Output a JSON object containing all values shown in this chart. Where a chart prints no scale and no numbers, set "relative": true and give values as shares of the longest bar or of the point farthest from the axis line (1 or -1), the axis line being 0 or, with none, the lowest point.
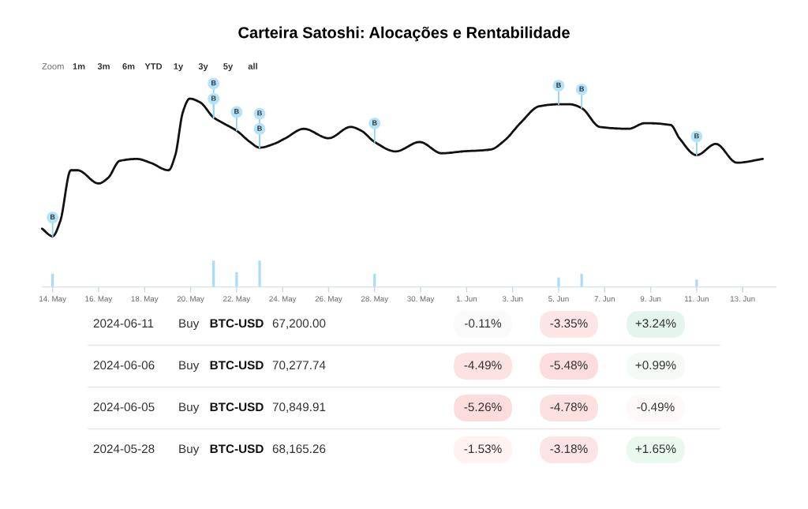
{
  "chart_data": [
    {
      "type": "line",
      "title": "Carteira Satoshi: Alocações e Rentabilidade",
      "relative": true,
      "x": [
        "2024-05-13T13:00",
        "2024-05-14T00:00",
        "2024-05-14T08:00",
        "2024-05-14T19:00",
        "2024-05-15T02:00",
        "2024-05-16T00:00",
        "2024-05-16T10:00",
        "2024-05-16T22:00",
        "2024-05-17T16:00",
        "2024-05-18T06:00",
        "2024-05-19T01:00",
        "2024-05-19T08:00",
        "2024-05-19T16:00",
        "2024-05-19T23:00",
        "2024-05-20T10:00",
        "2024-05-21T00:00",
        "2024-05-21T10:00",
        "2024-05-22T00:00",
        "2024-05-22T14:00",
        "2024-05-23T00:00",
        "2024-05-23T15:00",
        "2024-05-24T03:00",
        "2024-05-24T22:00",
        "2024-05-26T00:00",
        "2024-05-26T23:00",
        "2024-05-27T10:00",
        "2024-05-28T00:00",
        "2024-05-28T22:00",
        "2024-05-29T23:00",
        "2024-05-30T22:00",
        "2024-05-31T20:00",
        "2024-06-02T01:00",
        "2024-06-02T16:00",
        "2024-06-03T08:00",
        "2024-06-04T04:00",
        "2024-06-05T00:00",
        "2024-06-05T12:00",
        "2024-06-06T00:00",
        "2024-06-06T19:00",
        "2024-06-08T01:00",
        "2024-06-08T18:00",
        "2024-06-09T21:00",
        "2024-06-10T06:00",
        "2024-06-11T00:00",
        "2024-06-11T20:00",
        "2024-06-12T18:00",
        "2024-06-13T21:00"
      ],
      "series": [
        {
          "type": "line",
          "color": "#111111",
          "values": [
            0.31,
            0.27,
            0.35,
            0.62,
            0.62,
            0.55,
            0.58,
            0.67,
            0.68,
            0.66,
            0.62,
            0.7,
            0.93,
            1.0,
            0.98,
            0.9,
            0.87,
            0.83,
            0.77,
            0.74,
            0.76,
            0.79,
            0.84,
            0.79,
            0.85,
            0.83,
            0.77,
            0.72,
            0.77,
            0.71,
            0.72,
            0.73,
            0.78,
            0.87,
            0.96,
            0.97,
            0.97,
            0.95,
            0.85,
            0.84,
            0.87,
            0.86,
            0.79,
            0.7,
            0.76,
            0.66,
            0.68
          ]
        },
        {
          "type": "bar",
          "color": "#a8dcf8",
          "x": [
            "2024-05-14",
            "2024-05-21",
            "2024-05-22",
            "2024-05-23",
            "2024-05-28",
            "2024-06-05",
            "2024-06-06",
            "2024-06-11"
          ],
          "values": [
            0.07,
            0.14,
            0.08,
            0.14,
            0.07,
            0.05,
            0.07,
            0.04
          ]
        }
      ],
      "xlim": [
        "2024-05-13T13:00",
        "2024-06-14T11:00"
      ],
      "xticks": [
        {
          "value": "2024-05-14",
          "label": "14. May"
        },
        {
          "value": "2024-05-16",
          "label": "16. May"
        },
        {
          "value": "2024-05-18",
          "label": "18. May"
        },
        {
          "value": "2024-05-20",
          "label": "20. May"
        },
        {
          "value": "2024-05-22",
          "label": "22. May"
        },
        {
          "value": "2024-05-24",
          "label": "24. May"
        },
        {
          "value": "2024-05-26",
          "label": "26. May"
        },
        {
          "value": "2024-05-28",
          "label": "28. May"
        },
        {
          "value": "2024-05-30",
          "label": "30. May"
        },
        {
          "value": "2024-06-01",
          "label": "1. Jun"
        },
        {
          "value": "2024-06-03",
          "label": "3. Jun"
        },
        {
          "value": "2024-06-05",
          "label": "5. Jun"
        },
        {
          "value": "2024-06-07",
          "label": "7. Jun"
        },
        {
          "value": "2024-06-09",
          "label": "9. Jun"
        },
        {
          "value": "2024-06-11",
          "label": "11. Jun"
        },
        {
          "value": "2024-06-13",
          "label": "13. Jun"
        }
      ],
      "annotations": [
        "Zoom",
        "1m",
        "3m",
        "6m",
        "YTD",
        "1y",
        "3y",
        "5y",
        "all",
        {
          "text": "B",
          "x": "2024-05-14",
          "y": 0.27
        },
        {
          "text": "B",
          "x": "2024-05-21",
          "y": 0.9
        },
        {
          "text": "B",
          "x": "2024-05-21",
          "y": 0.9
        },
        {
          "text": "B",
          "x": "2024-05-22",
          "y": 0.83
        },
        {
          "text": "B",
          "x": "2024-05-23",
          "y": 0.74
        },
        {
          "text": "B",
          "x": "2024-05-23",
          "y": 0.74
        },
        {
          "text": "B",
          "x": "2024-05-28",
          "y": 0.77
        },
        {
          "text": "B",
          "x": "2024-06-05",
          "y": 0.97
        },
        {
          "text": "B",
          "x": "2024-06-06",
          "y": 0.95
        },
        {
          "text": "B",
          "x": "2024-06-11",
          "y": 0.7
        }
      ]
    },
    {
      "type": "other",
      "cell_labels": [
        [
          "2024-06-11",
          "Buy",
          "BTC-USD",
          "67,200.00",
          "-0.11%",
          "-3.35%",
          "+3.24%"
        ],
        [
          "2024-06-06",
          "Buy",
          "BTC-USD",
          "70,277.74",
          "-4.49%",
          "-5.48%",
          "+0.99%"
        ],
        [
          "2024-06-05",
          "Buy",
          "BTC-USD",
          "70,849.91",
          "-5.26%",
          "-4.78%",
          "-0.49%"
        ],
        [
          "2024-05-28",
          "Buy",
          "BTC-USD",
          "68,165.26",
          "-1.53%",
          "-3.18%",
          "+1.65%"
        ]
      ],
      "colors": [
        [
          null,
          null,
          null,
          null,
          "#fafafa",
          "#fde5e5",
          "#e3f5ec"
        ],
        [
          null,
          null,
          null,
          null,
          "#fde2e2",
          "#fcdcdc",
          "#f4fbf7"
        ],
        [
          null,
          null,
          null,
          null,
          "#fcdcdc",
          "#fde0e0",
          "#fdf9f9"
        ],
        [
          null,
          null,
          null,
          null,
          "#fef2f2",
          "#fde4e4",
          "#ebf8f0"
        ]
      ]
    }
  ]
}
